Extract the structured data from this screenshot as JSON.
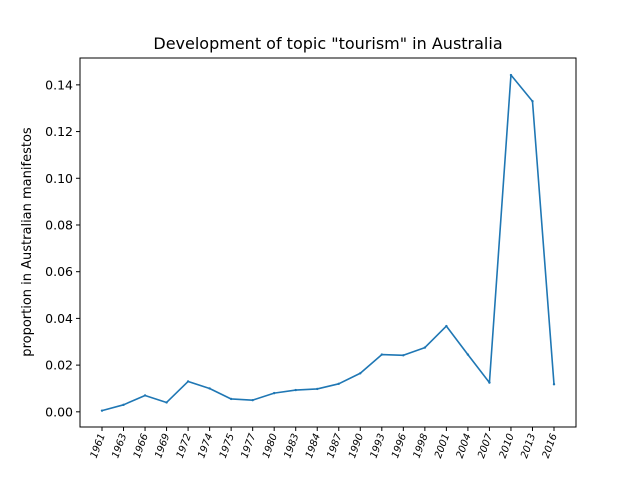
{
  "chart_data": {
    "type": "line",
    "title": "Development of topic \"tourism\" in Australia",
    "xlabel": "",
    "ylabel": "proportion in Australian manifestos",
    "ylim": [
      -0.0065,
      0.1515
    ],
    "grid": false,
    "colors": {
      "line": "#1f77b4"
    },
    "yticks": [
      "0.00",
      "0.02",
      "0.04",
      "0.06",
      "0.08",
      "0.10",
      "0.12",
      "0.14"
    ],
    "categories": [
      "1961",
      "1963",
      "1966",
      "1969",
      "1972",
      "1974",
      "1975",
      "1977",
      "1980",
      "1983",
      "1984",
      "1987",
      "1990",
      "1993",
      "1996",
      "1998",
      "2001",
      "2004",
      "2007",
      "2010",
      "2013",
      "2016"
    ],
    "series": [
      {
        "values": [
          0.0005,
          0.003,
          0.007,
          0.004,
          0.013,
          0.01,
          0.0055,
          0.005,
          0.008,
          0.0093,
          0.0098,
          0.012,
          0.0165,
          0.0245,
          0.0242,
          0.0275,
          0.0367,
          0.0245,
          0.0125,
          0.1442,
          0.133,
          0.0118
        ]
      }
    ]
  }
}
